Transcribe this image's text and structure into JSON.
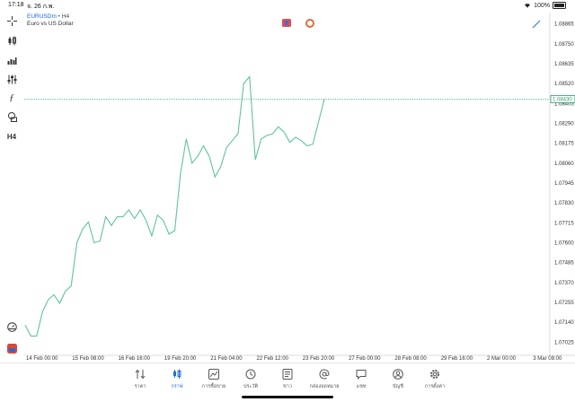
{
  "status_bar": {
    "time": "17:18",
    "date": "จ. 26 ก.พ.",
    "battery": "100%"
  },
  "symbol": {
    "name": "EURUSDm",
    "timeframe": "H4",
    "description": "Euro vs US Dollar"
  },
  "toolbar": {
    "timeframe_label": "H4"
  },
  "colors": {
    "line": "#5fc3a0",
    "current_price": "#2a9d6f",
    "accent": "#1e6fd9"
  },
  "tabs": [
    {
      "label": "ราคา",
      "icon": "quotes-icon"
    },
    {
      "label": "กราฟ",
      "icon": "chart-icon",
      "active": true
    },
    {
      "label": "การซื้อขาย",
      "icon": "trade-icon"
    },
    {
      "label": "ประวัติ",
      "icon": "history-icon"
    },
    {
      "label": "ข่าว",
      "icon": "news-icon"
    },
    {
      "label": "กล่องจดหมาย",
      "icon": "mailbox-icon"
    },
    {
      "label": "แชท",
      "icon": "chat-icon"
    },
    {
      "label": "บัญชี",
      "icon": "account-icon"
    },
    {
      "label": "การตั้งค่า",
      "icon": "settings-icon"
    }
  ],
  "chart_data": {
    "type": "line",
    "current_price": "1.08430",
    "price_ticks": [
      "1.08865",
      "1.08750",
      "1.08635",
      "1.08520",
      "1.08405",
      "1.08290",
      "1.08175",
      "1.08060",
      "1.07945",
      "1.07830",
      "1.07715",
      "1.07600",
      "1.07485",
      "1.07370",
      "1.07255",
      "1.07140",
      "1.07025"
    ],
    "time_ticks": [
      "14 Feb 00:00",
      "15 Feb 08:00",
      "16 Feb 16:00",
      "19 Feb 20:00",
      "21 Feb 04:00",
      "22 Feb 12:00",
      "23 Feb 20:00",
      "27 Feb 00:00",
      "28 Feb 08:00",
      "29 Feb 16:00",
      "2 Mar 00:00",
      "3 Mar 08:00"
    ],
    "ylim": [
      1.0697,
      1.0892
    ],
    "values": [
      1.07125,
      1.0706,
      1.0706,
      1.072,
      1.0727,
      1.073,
      1.0725,
      1.0732,
      1.0735,
      1.076,
      1.0768,
      1.0772,
      1.076,
      1.0761,
      1.0775,
      1.077,
      1.0775,
      1.0775,
      1.0779,
      1.0774,
      1.0779,
      1.0773,
      1.0764,
      1.0776,
      1.0773,
      1.0765,
      1.0767,
      1.08,
      1.082,
      1.0806,
      1.081,
      1.0816,
      1.081,
      1.0798,
      1.0804,
      1.0815,
      1.0819,
      1.0823,
      1.0852,
      1.0856,
      1.0808,
      1.082,
      1.0822,
      1.0823,
      1.0827,
      1.0824,
      1.0818,
      1.0821,
      1.0819,
      1.0816,
      1.0817,
      1.083,
      1.0843
    ]
  }
}
